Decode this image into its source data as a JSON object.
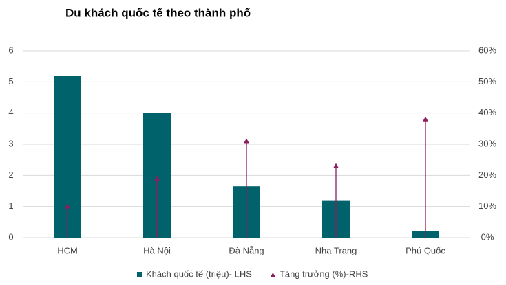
{
  "chart_data": {
    "type": "bar",
    "title": "Du khách quốc tế theo thành phố",
    "categories": [
      "HCM",
      "Hà Nội",
      "Đà Nẵng",
      "Nha Trang",
      "Phú Quốc"
    ],
    "series": [
      {
        "name": "Khách quốc tế (triệu)- LHS",
        "color": "#00636b",
        "values": [
          5.2,
          4.0,
          1.65,
          1.2,
          0.2
        ]
      },
      {
        "name": "Tăng trưởng (%)-RHS",
        "color": "#8e1d5e",
        "axis": "y2",
        "marker": "triangle",
        "values": [
          10,
          19,
          31,
          23,
          38
        ]
      }
    ],
    "ylim": [
      0,
      6
    ],
    "yticks": [
      0,
      1,
      2,
      3,
      4,
      5,
      6
    ],
    "y2lim": [
      0,
      60
    ],
    "y2ticks": [
      {
        "value": 0,
        "label": "0%"
      },
      {
        "value": 10,
        "label": "10%"
      },
      {
        "value": 20,
        "label": "20%"
      },
      {
        "value": 30,
        "label": "30%"
      },
      {
        "value": 40,
        "label": "40%"
      },
      {
        "value": 50,
        "label": "50%"
      },
      {
        "value": 60,
        "label": "60%"
      }
    ],
    "grid": true,
    "legend": "bottom"
  }
}
